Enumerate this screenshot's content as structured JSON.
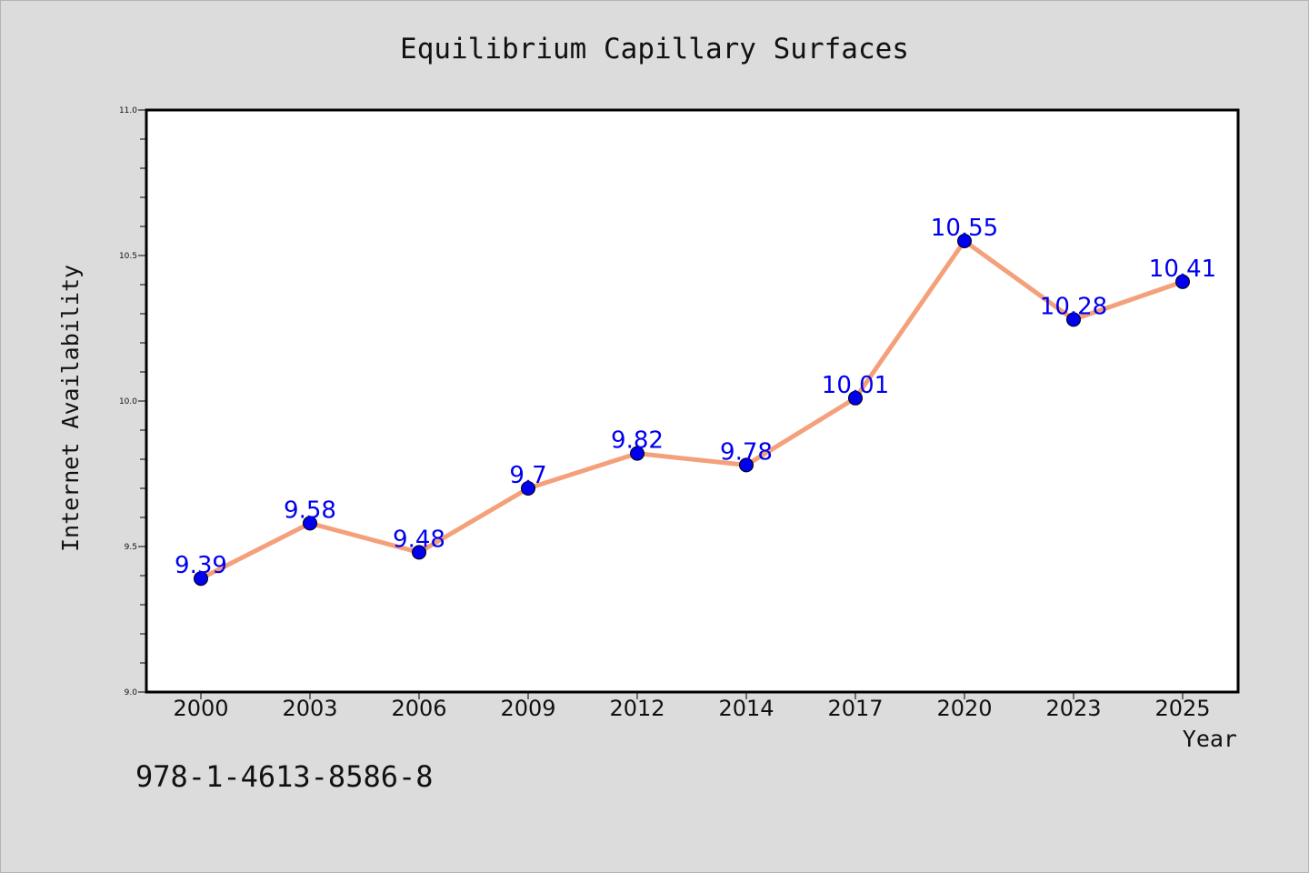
{
  "chart_data": {
    "type": "line",
    "title": "Equilibrium Capillary Surfaces",
    "xlabel": "Year",
    "ylabel": "Internet Availability",
    "categories": [
      "2000",
      "2003",
      "2006",
      "2009",
      "2012",
      "2014",
      "2017",
      "2020",
      "2023",
      "2025"
    ],
    "series": [
      {
        "values": [
          9.39,
          9.58,
          9.48,
          9.7,
          9.82,
          9.78,
          10.01,
          10.55,
          10.28,
          10.41
        ],
        "labels": [
          "9.39",
          "9.58",
          "9.48",
          "9.7",
          "9.82",
          "9.78",
          "10.01",
          "10.55",
          "10.28",
          "10.41"
        ],
        "line_color": "#f4a07a",
        "marker_color": "#0000ee",
        "label_color": "#0000ee"
      }
    ],
    "ylim": [
      9.0,
      11.0
    ],
    "yticks": [
      9.0,
      9.5,
      10.0,
      10.5,
      11.0
    ],
    "ytick_labels": [
      "9.0",
      "9.5",
      "10.0",
      "10.5",
      "11.0"
    ],
    "grid": false,
    "legend": "none"
  },
  "footer": {
    "code": "978-1-4613-8586-8"
  },
  "colors": {
    "background": "#dcdcdc",
    "plot_background": "#ffffff",
    "axis": "#000000"
  }
}
